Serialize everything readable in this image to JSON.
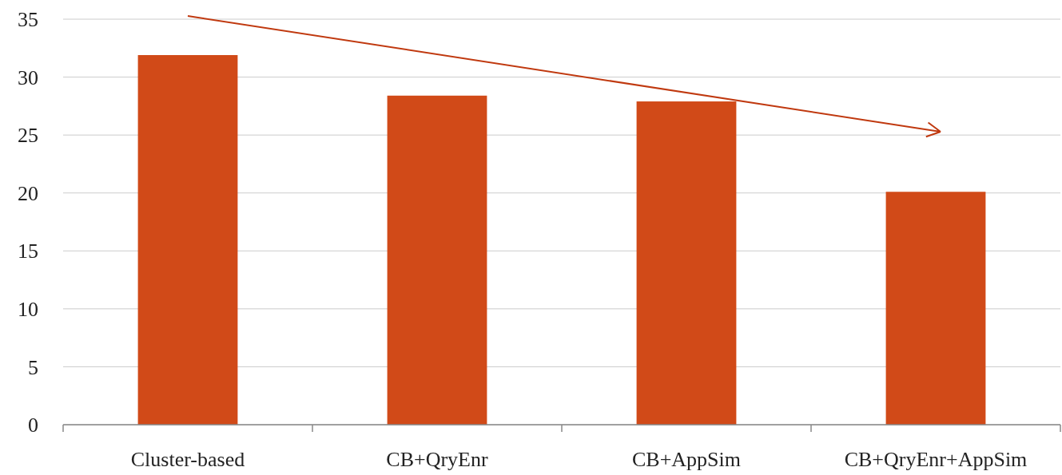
{
  "chart_data": {
    "type": "bar",
    "categories": [
      "Cluster-based",
      "CB+QryEnr",
      "CB+AppSim",
      "CB+QryEnr+AppSim"
    ],
    "values": [
      31.9,
      28.4,
      27.9,
      20.1
    ],
    "color": "#d14a18",
    "ylim": [
      0,
      35
    ],
    "yticks": [
      0,
      5,
      10,
      15,
      20,
      25,
      30,
      35
    ],
    "grid": "y"
  }
}
